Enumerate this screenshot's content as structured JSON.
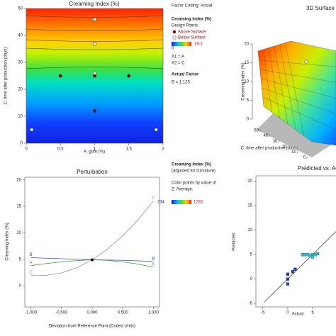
{
  "chart_data": [
    {
      "type": "contour",
      "title": "Creaming Index (%)",
      "x_label": "A: gum (%)",
      "y_label": "C: time after production (days)",
      "xlim": [
        0,
        2
      ],
      "ylim": [
        0,
        50
      ],
      "xticks": [
        0,
        0.5,
        1,
        1.5,
        2
      ],
      "yticks": [
        0,
        10,
        20,
        30,
        40,
        50
      ],
      "series": [
        {
          "name": "Above Surface",
          "color": "#8b0000",
          "x": [
            0.5,
            1,
            1.5,
            1
          ],
          "values": [
            25,
            25,
            25,
            12
          ]
        },
        {
          "name": "Below Surface",
          "color": "#ffffff",
          "x": [
            1,
            1,
            1,
            0.08,
            1.9
          ],
          "values": [
            46,
            37,
            26,
            5,
            5
          ]
        }
      ],
      "legend": {
        "factor_coding": "Factor Coding: Actual",
        "title": "Creaming Index (%)",
        "design_points": "Design Points:",
        "factors": [
          "X1 = A",
          "X2 = C"
        ],
        "actual_factor": "Actual Factor",
        "actual_factor_value": "B = 1.125"
      },
      "colorbar": {
        "min": 0,
        "max": 19.2
      }
    },
    {
      "type": "surface",
      "title": "3D Surface",
      "z_label": "Creaming Index (%)",
      "y_label": "C: time after production (days)",
      "zlim": [
        0,
        20
      ],
      "zticks": [
        0,
        5,
        10,
        15,
        20
      ],
      "ylim": [
        0,
        50
      ],
      "yticks": [
        0,
        10,
        20,
        30,
        40,
        50
      ]
    },
    {
      "type": "line",
      "title": "Perturbation",
      "x_label": "Deviation from Reference Point (Coded Units)",
      "y_label": "Creaming Index (%)",
      "x": [
        -1,
        -0.75,
        -0.5,
        -0.25,
        0,
        0.25,
        0.5,
        0.75,
        1
      ],
      "xlim": [
        -1.1,
        1.1
      ],
      "ylim": [
        -4,
        20.5
      ],
      "xticks": [
        {
          "value": -1,
          "label": "-1.000"
        },
        {
          "value": -0.5,
          "label": "-0.500"
        },
        {
          "value": 0,
          "label": "0.000"
        },
        {
          "value": 0.5,
          "label": "0.500"
        },
        {
          "value": 1,
          "label": "1.000"
        }
      ],
      "yticks": [
        0,
        5,
        10,
        15,
        20
      ],
      "series": [
        {
          "name": "A",
          "color": "#3a9a3a",
          "values": [
            3.8,
            4.2,
            4.5,
            4.75,
            4.9,
            4.8,
            4.5,
            4.1,
            3.5
          ]
        },
        {
          "name": "B",
          "color": "#3b4bc8",
          "values": [
            5.3,
            5.2,
            5.1,
            5.0,
            4.9,
            4.85,
            4.8,
            4.7,
            4.6
          ]
        },
        {
          "name": "C",
          "color": "#999999",
          "values": [
            2.0,
            1.96,
            2.43,
            3.41,
            4.9,
            6.91,
            9.43,
            12.46,
            16.0
          ]
        }
      ],
      "reference_point": {
        "x": 0,
        "y": 4.9
      },
      "legend": {
        "title": "Creaming Index (%)",
        "subtitle": "(adjusted for curvature)",
        "color_note": "Color points by value of",
        "z_note": "Z: Average:"
      },
      "colorbar": {
        "min": 234,
        "max": 1232
      }
    },
    {
      "type": "scatter",
      "title": "Predicted vs. Actual",
      "x_label": "Actual",
      "y_label": "Predicted",
      "xlim": [
        -6.4,
        10.7
      ],
      "ylim": [
        -5.7,
        21.1
      ],
      "xticks": [
        -5,
        0,
        5
      ],
      "yticks": [
        -5,
        0,
        5,
        10,
        15,
        20
      ],
      "series": [
        {
          "color": "#2ec4d8",
          "x": [
            3,
            3.5,
            4,
            4.5,
            5,
            5.5,
            6,
            5
          ],
          "values": [
            5,
            5,
            5,
            4.8,
            5,
            5,
            5.2,
            4.5
          ]
        },
        {
          "color": "#1f3fbf",
          "x": [
            0,
            0,
            0,
            1,
            1.5
          ],
          "values": [
            0,
            1,
            -1,
            1.5,
            2
          ]
        }
      ]
    }
  ]
}
